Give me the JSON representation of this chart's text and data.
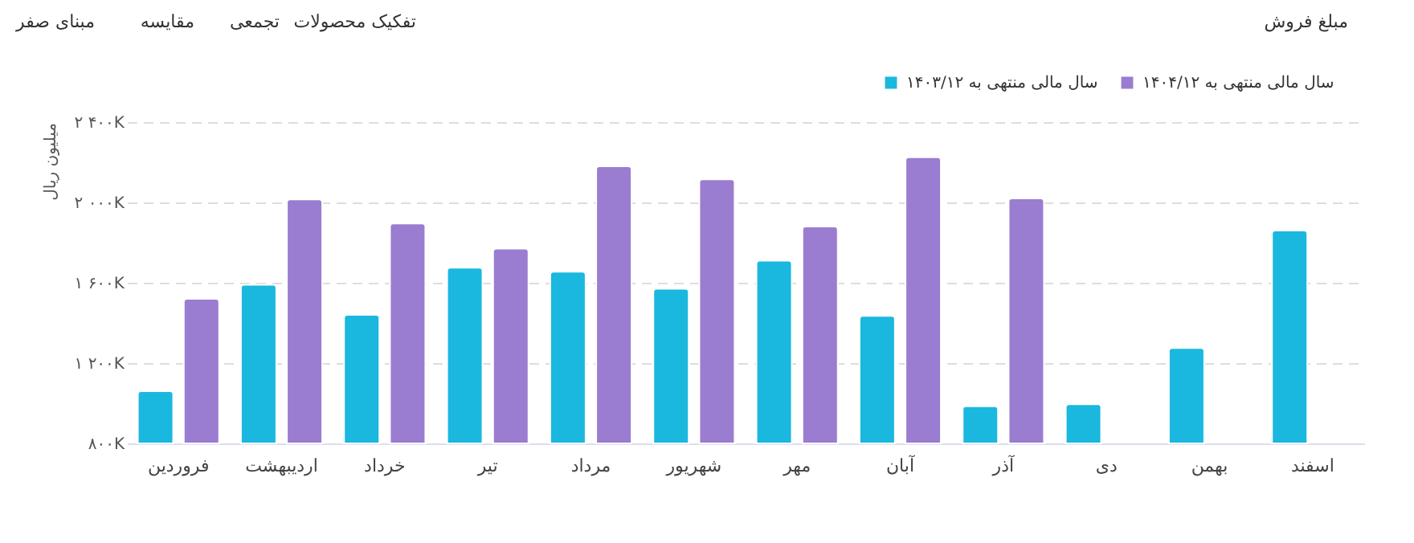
{
  "chart_data": {
    "type": "bar",
    "categories": [
      "فروردین",
      "اردیبهشت",
      "خرداد",
      "تیر",
      "مرداد",
      "شهریور",
      "مهر",
      "آبان",
      "آذر",
      "دی",
      "بهمن",
      "اسفند"
    ],
    "series": [
      {
        "name": "سال مالی منتهی به ۱۴۰۳/۱۲",
        "color": "#1ab8de",
        "values": [
          1060,
          1590,
          1440,
          1675,
          1655,
          1570,
          1710,
          1435,
          985,
          995,
          1275,
          1860
        ]
      },
      {
        "name": "سال مالی منتهی به ۱۴۰۴/۱۲",
        "color": "#9a7dd0",
        "values": [
          1520,
          2015,
          1895,
          1770,
          2180,
          2115,
          1880,
          2225,
          2020,
          null,
          null,
          null
        ]
      }
    ],
    "ylabel": "میلیون ریال",
    "ylim": [
      800,
      2400
    ],
    "yticks": [
      {
        "value": 800,
        "label": "۸۰۰K"
      },
      {
        "value": 1200,
        "label": "۱ ۲۰۰K"
      },
      {
        "value": 1600,
        "label": "۱ ۶۰۰K"
      },
      {
        "value": 2000,
        "label": "۲ ۰۰۰K"
      },
      {
        "value": 2400,
        "label": "۲ ۴۰۰K"
      }
    ],
    "grid": "y",
    "legend": "top right",
    "annotations": [
      "مبلغ فروش",
      "تفکیک محصولات",
      "تجمعی",
      "مقایسه",
      "مبنای صفر"
    ]
  }
}
